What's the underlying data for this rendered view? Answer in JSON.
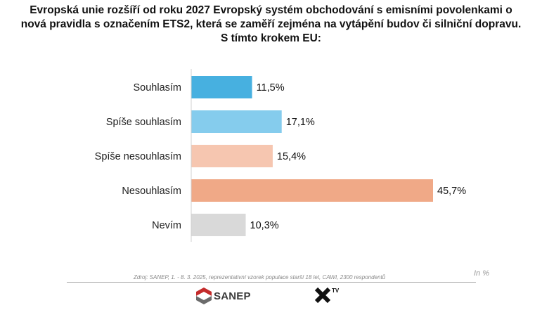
{
  "title_lines": [
    "Evropská unie rozšíří od roku 2027 Evropský systém obchodování s emisními povolenkami o",
    "nová pravidla s označením ETS2, která se zaměří zejména na vytápění budov či silniční dopravu.",
    "S tímto krokem EU:"
  ],
  "chart_data": {
    "type": "bar",
    "orientation": "horizontal",
    "categories": [
      "Souhlasím",
      "Spíše souhlasím",
      "Spíše nesouhlasím",
      "Nesouhlasím",
      "Nevím"
    ],
    "values": [
      11.5,
      17.1,
      15.4,
      45.7,
      10.3
    ],
    "value_labels": [
      "11,5%",
      "17,1%",
      "15,4%",
      "45,7%",
      "10,3%"
    ],
    "colors": [
      "#47b0e0",
      "#85cced",
      "#f6c6b0",
      "#f0a987",
      "#d9d9d9"
    ],
    "xlim": [
      0,
      45.7
    ],
    "grid": false,
    "unit_label": "In %"
  },
  "footer": {
    "source": "Zdroj: SANEP, 1. - 8. 3. 2025, reprezentativní vzorek populace starší 18 let, CAWI, 2300 respondentů",
    "sanep_logo_text": "SANEP",
    "xtv_logo_text": "TV"
  }
}
